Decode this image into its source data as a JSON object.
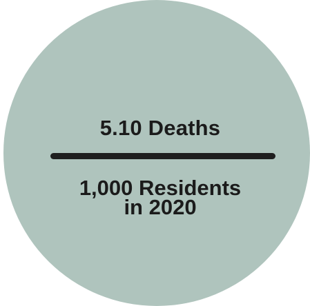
{
  "stat": {
    "numerator": "5.10 Deaths",
    "denominator_line1": "1,000 Residents",
    "denominator_line2": "in 2020"
  },
  "colors": {
    "circle_fill": "#afc4bd",
    "text": "#1b1b1b",
    "divider": "#1f1f1f"
  }
}
